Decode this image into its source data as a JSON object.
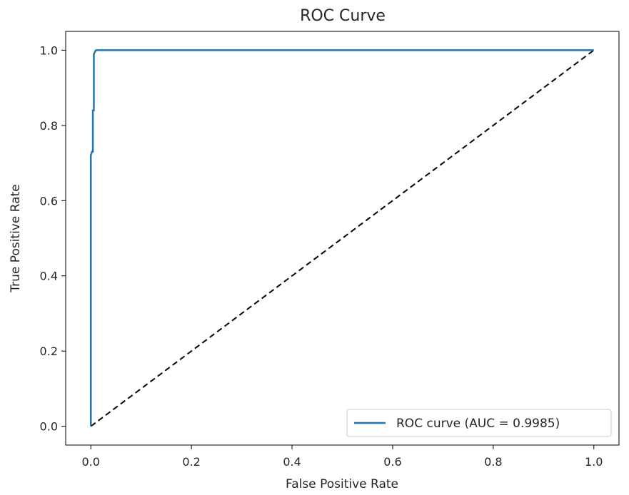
{
  "chart_data": {
    "type": "line",
    "title": "ROC Curve",
    "xlabel": "False Positive Rate",
    "ylabel": "True Positive Rate",
    "xlim": [
      -0.05,
      1.05
    ],
    "ylim": [
      -0.05,
      1.05
    ],
    "xticks": [
      0.0,
      0.2,
      0.4,
      0.6,
      0.8,
      1.0
    ],
    "yticks": [
      0.0,
      0.2,
      0.4,
      0.6,
      0.8,
      1.0
    ],
    "xtick_labels": [
      "0.0",
      "0.2",
      "0.4",
      "0.6",
      "0.8",
      "1.0"
    ],
    "ytick_labels": [
      "0.0",
      "0.2",
      "0.4",
      "0.6",
      "0.8",
      "1.0"
    ],
    "grid": false,
    "legend_position": "lower-right",
    "series": [
      {
        "name": "ROC curve (AUC = 0.9985)",
        "color": "#1f77b4",
        "style": "solid",
        "x": [
          0.0,
          0.0,
          0.002,
          0.004,
          0.004,
          0.006,
          0.006,
          0.01,
          0.02,
          0.05,
          0.2,
          0.5,
          0.8,
          1.0
        ],
        "y": [
          0.0,
          0.72,
          0.73,
          0.73,
          0.84,
          0.84,
          0.99,
          1.0,
          1.0,
          1.0,
          1.0,
          1.0,
          1.0,
          1.0
        ]
      },
      {
        "name": "",
        "color": "#000000",
        "style": "dashed",
        "x": [
          0.0,
          1.0
        ],
        "y": [
          0.0,
          1.0
        ]
      }
    ]
  }
}
